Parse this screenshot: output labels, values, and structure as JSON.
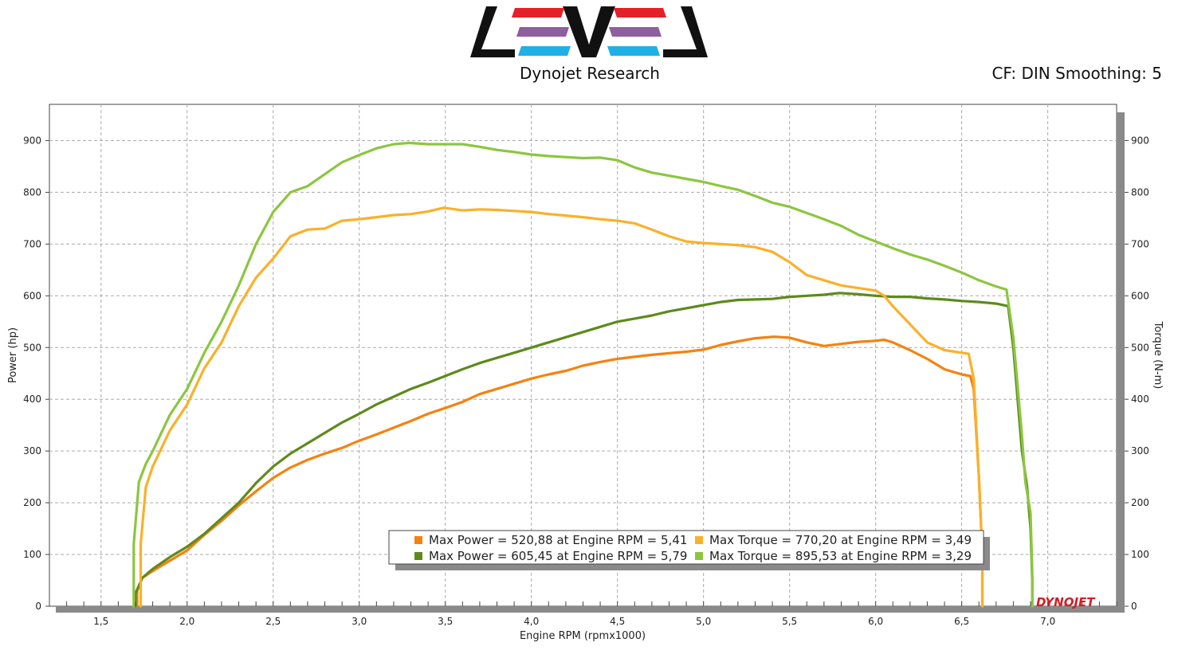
{
  "header": {
    "company": "Dynojet Research",
    "cf_info": "CF: DIN Smoothing: 5",
    "logo_colors": [
      "#e32129",
      "#8e5ea0",
      "#1fb0e6",
      "#111111"
    ],
    "brand_logo_text": "DYNOJET"
  },
  "chart_data": {
    "type": "line",
    "xlabel": "Engine RPM (rpmx1000)",
    "ylabel_left": "Power (hp)",
    "ylabel_right": "Torque (N-m)",
    "xlim": [
      1.2,
      7.4
    ],
    "ylim": [
      0,
      970
    ],
    "xticks": [
      1.5,
      2.0,
      2.5,
      3.0,
      3.5,
      4.0,
      4.5,
      5.0,
      5.5,
      6.0,
      6.5,
      7.0
    ],
    "xtick_labels": [
      "1,5",
      "2,0",
      "2,5",
      "3,0",
      "3,5",
      "4,0",
      "4,5",
      "5,0",
      "5,5",
      "6,0",
      "6,5",
      "7,0"
    ],
    "yticks": [
      0,
      100,
      200,
      300,
      400,
      500,
      600,
      700,
      800,
      900
    ],
    "ytick_labels": [
      "0",
      "100",
      "200",
      "300",
      "400",
      "500",
      "600",
      "700",
      "800",
      "900"
    ],
    "grid": true,
    "series": [
      {
        "color": "#f5820f",
        "points": [
          [
            1.71,
            0
          ],
          [
            1.71,
            30
          ],
          [
            1.74,
            55
          ],
          [
            1.8,
            68
          ],
          [
            1.9,
            88
          ],
          [
            2.0,
            108
          ],
          [
            2.1,
            138
          ],
          [
            2.2,
            165
          ],
          [
            2.3,
            195
          ],
          [
            2.4,
            222
          ],
          [
            2.5,
            248
          ],
          [
            2.6,
            268
          ],
          [
            2.7,
            283
          ],
          [
            2.8,
            295
          ],
          [
            2.9,
            306
          ],
          [
            3.0,
            320
          ],
          [
            3.1,
            332
          ],
          [
            3.2,
            345
          ],
          [
            3.3,
            358
          ],
          [
            3.4,
            372
          ],
          [
            3.5,
            383
          ],
          [
            3.6,
            395
          ],
          [
            3.7,
            410
          ],
          [
            3.8,
            420
          ],
          [
            3.9,
            430
          ],
          [
            4.0,
            440
          ],
          [
            4.1,
            448
          ],
          [
            4.2,
            455
          ],
          [
            4.3,
            465
          ],
          [
            4.4,
            472
          ],
          [
            4.5,
            478
          ],
          [
            4.6,
            482
          ],
          [
            4.7,
            486
          ],
          [
            4.8,
            489
          ],
          [
            4.9,
            492
          ],
          [
            5.0,
            496
          ],
          [
            5.1,
            505
          ],
          [
            5.2,
            512
          ],
          [
            5.3,
            518
          ],
          [
            5.41,
            520.88
          ],
          [
            5.5,
            519
          ],
          [
            5.6,
            510
          ],
          [
            5.7,
            503
          ],
          [
            5.8,
            507
          ],
          [
            5.9,
            511
          ],
          [
            6.0,
            513
          ],
          [
            6.05,
            515
          ],
          [
            6.1,
            510
          ],
          [
            6.2,
            495
          ],
          [
            6.3,
            478
          ],
          [
            6.4,
            458
          ],
          [
            6.5,
            448
          ],
          [
            6.55,
            445
          ],
          [
            6.57,
            420
          ],
          [
            6.6,
            250
          ],
          [
            6.62,
            100
          ],
          [
            6.62,
            0
          ]
        ]
      },
      {
        "color": "#5e8a1c",
        "points": [
          [
            1.7,
            0
          ],
          [
            1.7,
            25
          ],
          [
            1.74,
            55
          ],
          [
            1.8,
            72
          ],
          [
            1.9,
            95
          ],
          [
            2.0,
            115
          ],
          [
            2.1,
            140
          ],
          [
            2.2,
            170
          ],
          [
            2.3,
            200
          ],
          [
            2.4,
            238
          ],
          [
            2.5,
            270
          ],
          [
            2.6,
            295
          ],
          [
            2.7,
            315
          ],
          [
            2.8,
            335
          ],
          [
            2.9,
            355
          ],
          [
            3.0,
            372
          ],
          [
            3.1,
            390
          ],
          [
            3.2,
            405
          ],
          [
            3.3,
            420
          ],
          [
            3.4,
            432
          ],
          [
            3.5,
            445
          ],
          [
            3.6,
            458
          ],
          [
            3.7,
            470
          ],
          [
            3.8,
            480
          ],
          [
            3.9,
            490
          ],
          [
            4.0,
            500
          ],
          [
            4.1,
            510
          ],
          [
            4.2,
            520
          ],
          [
            4.3,
            530
          ],
          [
            4.4,
            540
          ],
          [
            4.5,
            550
          ],
          [
            4.6,
            556
          ],
          [
            4.7,
            562
          ],
          [
            4.8,
            570
          ],
          [
            4.9,
            576
          ],
          [
            5.0,
            582
          ],
          [
            5.1,
            588
          ],
          [
            5.2,
            592
          ],
          [
            5.3,
            593
          ],
          [
            5.4,
            594
          ],
          [
            5.5,
            598
          ],
          [
            5.6,
            600
          ],
          [
            5.7,
            602
          ],
          [
            5.79,
            605.45
          ],
          [
            5.9,
            603
          ],
          [
            6.0,
            600
          ],
          [
            6.1,
            598
          ],
          [
            6.2,
            598
          ],
          [
            6.3,
            595
          ],
          [
            6.4,
            593
          ],
          [
            6.5,
            590
          ],
          [
            6.6,
            588
          ],
          [
            6.7,
            585
          ],
          [
            6.77,
            580
          ],
          [
            6.8,
            500
          ],
          [
            6.85,
            300
          ],
          [
            6.88,
            230
          ],
          [
            6.9,
            150
          ],
          [
            6.91,
            50
          ],
          [
            6.91,
            0
          ]
        ]
      },
      {
        "color": "#fbb02a",
        "points": [
          [
            1.73,
            0
          ],
          [
            1.73,
            120
          ],
          [
            1.76,
            230
          ],
          [
            1.8,
            270
          ],
          [
            1.9,
            340
          ],
          [
            2.0,
            390
          ],
          [
            2.1,
            460
          ],
          [
            2.2,
            510
          ],
          [
            2.3,
            580
          ],
          [
            2.4,
            635
          ],
          [
            2.5,
            672
          ],
          [
            2.6,
            715
          ],
          [
            2.7,
            728
          ],
          [
            2.8,
            730
          ],
          [
            2.9,
            745
          ],
          [
            3.0,
            748
          ],
          [
            3.1,
            752
          ],
          [
            3.2,
            756
          ],
          [
            3.3,
            758
          ],
          [
            3.4,
            763
          ],
          [
            3.49,
            770.2
          ],
          [
            3.6,
            765
          ],
          [
            3.7,
            767
          ],
          [
            3.8,
            766
          ],
          [
            3.9,
            764
          ],
          [
            4.0,
            762
          ],
          [
            4.1,
            758
          ],
          [
            4.2,
            755
          ],
          [
            4.3,
            752
          ],
          [
            4.4,
            748
          ],
          [
            4.5,
            745
          ],
          [
            4.6,
            740
          ],
          [
            4.7,
            728
          ],
          [
            4.8,
            715
          ],
          [
            4.9,
            705
          ],
          [
            5.0,
            702
          ],
          [
            5.1,
            700
          ],
          [
            5.2,
            698
          ],
          [
            5.3,
            694
          ],
          [
            5.4,
            685
          ],
          [
            5.5,
            665
          ],
          [
            5.6,
            640
          ],
          [
            5.7,
            630
          ],
          [
            5.8,
            620
          ],
          [
            5.9,
            615
          ],
          [
            6.0,
            610
          ],
          [
            6.05,
            600
          ],
          [
            6.1,
            580
          ],
          [
            6.2,
            545
          ],
          [
            6.3,
            510
          ],
          [
            6.4,
            495
          ],
          [
            6.5,
            490
          ],
          [
            6.54,
            488
          ],
          [
            6.57,
            440
          ],
          [
            6.6,
            250
          ],
          [
            6.62,
            100
          ],
          [
            6.62,
            0
          ]
        ]
      },
      {
        "color": "#8cc63f",
        "points": [
          [
            1.69,
            0
          ],
          [
            1.69,
            120
          ],
          [
            1.72,
            240
          ],
          [
            1.76,
            275
          ],
          [
            1.8,
            300
          ],
          [
            1.9,
            370
          ],
          [
            2.0,
            420
          ],
          [
            2.1,
            490
          ],
          [
            2.2,
            550
          ],
          [
            2.3,
            620
          ],
          [
            2.4,
            700
          ],
          [
            2.5,
            762
          ],
          [
            2.6,
            800
          ],
          [
            2.7,
            812
          ],
          [
            2.8,
            835
          ],
          [
            2.9,
            858
          ],
          [
            3.0,
            872
          ],
          [
            3.1,
            885
          ],
          [
            3.2,
            893
          ],
          [
            3.29,
            895.53
          ],
          [
            3.4,
            893
          ],
          [
            3.5,
            893
          ],
          [
            3.6,
            893
          ],
          [
            3.7,
            888
          ],
          [
            3.8,
            882
          ],
          [
            3.9,
            878
          ],
          [
            4.0,
            873
          ],
          [
            4.1,
            870
          ],
          [
            4.2,
            868
          ],
          [
            4.3,
            866
          ],
          [
            4.4,
            867
          ],
          [
            4.5,
            862
          ],
          [
            4.6,
            848
          ],
          [
            4.7,
            838
          ],
          [
            4.8,
            832
          ],
          [
            4.9,
            826
          ],
          [
            5.0,
            820
          ],
          [
            5.1,
            812
          ],
          [
            5.2,
            805
          ],
          [
            5.3,
            793
          ],
          [
            5.4,
            780
          ],
          [
            5.5,
            772
          ],
          [
            5.6,
            760
          ],
          [
            5.7,
            748
          ],
          [
            5.8,
            735
          ],
          [
            5.9,
            718
          ],
          [
            6.0,
            705
          ],
          [
            6.1,
            692
          ],
          [
            6.2,
            680
          ],
          [
            6.3,
            670
          ],
          [
            6.4,
            658
          ],
          [
            6.5,
            645
          ],
          [
            6.6,
            630
          ],
          [
            6.7,
            618
          ],
          [
            6.76,
            612
          ],
          [
            6.8,
            520
          ],
          [
            6.85,
            330
          ],
          [
            6.87,
            240
          ],
          [
            6.9,
            180
          ],
          [
            6.91,
            60
          ],
          [
            6.91,
            0
          ]
        ]
      }
    ],
    "legend": {
      "placement": "bottom-center",
      "entries": [
        {
          "color": "#f5820f",
          "text": "Max Power = 520,88 at Engine RPM = 5,41"
        },
        {
          "color": "#fbb02a",
          "text": "Max Torque = 770,20 at Engine RPM = 3,49"
        },
        {
          "color": "#5e8a1c",
          "text": "Max Power = 605,45 at Engine RPM = 5,79"
        },
        {
          "color": "#8cc63f",
          "text": "Max Torque = 895,53 at Engine RPM = 3,29"
        }
      ]
    }
  }
}
